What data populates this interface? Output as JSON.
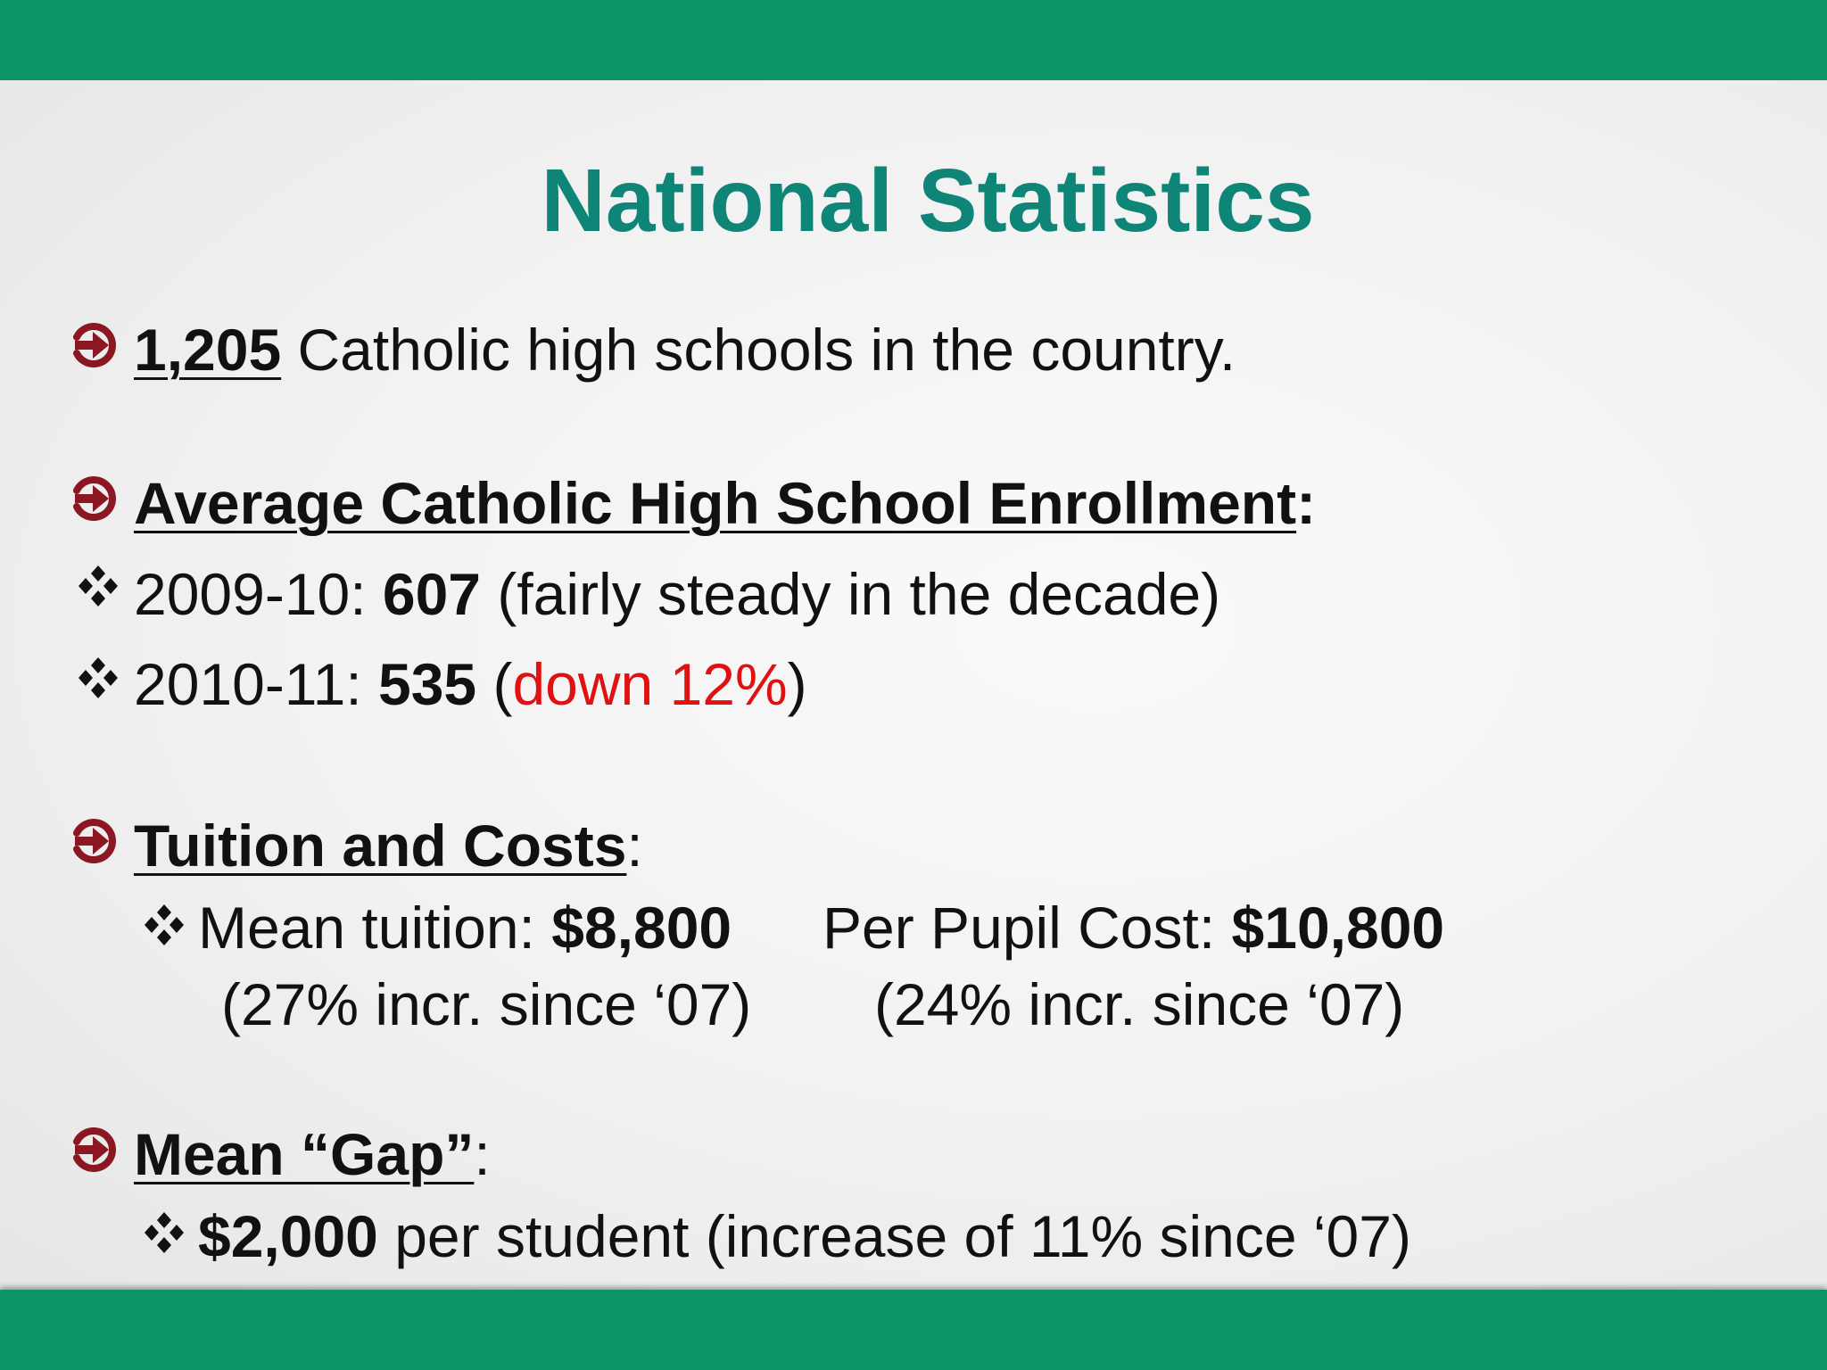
{
  "colors": {
    "band": "#0e9565",
    "title": "#0f8577",
    "arrow": "#8a1722",
    "highlight": "#e01111"
  },
  "title": "National Statistics",
  "schools": {
    "count": "1,205",
    "text": " Catholic high schools in the country."
  },
  "enrollment": {
    "heading": "Average Catholic High School Enrollment",
    "colon": ":",
    "items": [
      {
        "year": "2009-10: ",
        "value": "607",
        "pre": " (",
        "note": "fairly steady in the decade",
        "post": ")"
      },
      {
        "year": "2010-11: ",
        "value": "535",
        "pre": " (",
        "note": "down 12%",
        "post": ")"
      }
    ]
  },
  "tuition": {
    "heading": "Tuition and Costs",
    "colon": ":",
    "mean_label": "Mean tuition: ",
    "mean_value": "$8,800",
    "mean_note": "(27% incr. since ‘07)",
    "pupil_label": "Per Pupil Cost: ",
    "pupil_value": "$10,800",
    "pupil_note": "(24% incr. since ‘07)"
  },
  "gap": {
    "heading": "Mean “Gap”",
    "colon": ":",
    "value": "$2,000",
    "text": " per student (increase of 11% since ‘07)"
  },
  "icons": {
    "bullet": "arrow-circle-right-icon",
    "sub_bullet": "four-diamond-icon"
  }
}
